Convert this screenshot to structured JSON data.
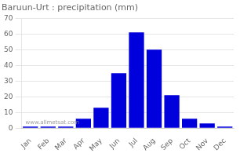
{
  "chart_data": {
    "type": "bar",
    "title": "Baruun-Urt : precipitation (mm)",
    "categories": [
      "Jan",
      "Feb",
      "Mar",
      "Apr",
      "May",
      "Jun",
      "Jul",
      "Aug",
      "Sep",
      "Oct",
      "Nov",
      "Dec"
    ],
    "values": [
      1,
      1,
      1,
      6,
      13,
      35,
      61,
      50,
      21,
      6,
      3,
      1
    ],
    "color": "#0000DD",
    "ylim": [
      0,
      70
    ],
    "yticks": [
      0,
      10,
      20,
      30,
      40,
      50,
      60,
      70
    ],
    "grid": true,
    "annotations": [
      "www.allmetsat.com"
    ]
  }
}
